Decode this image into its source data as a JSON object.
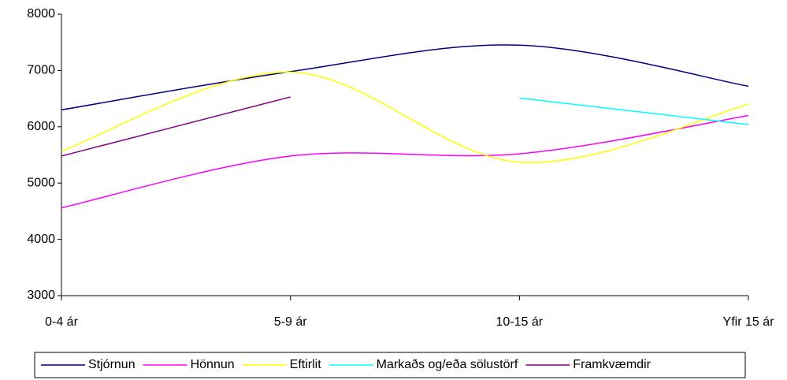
{
  "chart_data": {
    "type": "line",
    "categories": [
      "0-4 ár",
      "5-9 ár",
      "10-15 ár",
      "Yfir 15 ár"
    ],
    "series": [
      {
        "name": "Stjórnun",
        "color": "#000080",
        "values": [
          6300,
          6980,
          7450,
          6720
        ]
      },
      {
        "name": "Hönnun",
        "color": "#ff00ff",
        "values": [
          4560,
          5480,
          5520,
          6200
        ]
      },
      {
        "name": "Eftirlit",
        "color": "#ffff00",
        "values": [
          5570,
          6970,
          5370,
          6400
        ]
      },
      {
        "name": "Markaðs og/eða sölustörf",
        "color": "#00ffff",
        "values": [
          null,
          null,
          6510,
          6040
        ]
      },
      {
        "name": "Framkvæmdir",
        "color": "#800080",
        "values": [
          5480,
          6530,
          null,
          null
        ]
      }
    ],
    "ylim": [
      3000,
      8000
    ],
    "yticks": [
      3000,
      4000,
      5000,
      6000,
      7000,
      8000
    ],
    "smooth": true,
    "grid": false,
    "legend": "bottom"
  }
}
